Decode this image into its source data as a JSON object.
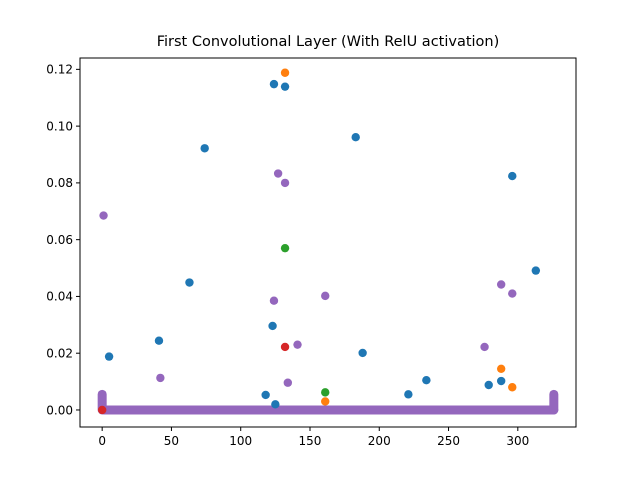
{
  "chart_data": {
    "type": "scatter",
    "title": "First Convolutional Layer (With RelU activation)",
    "xlabel": "",
    "ylabel": "",
    "xlim": [
      -16,
      342
    ],
    "ylim": [
      -0.006,
      0.124
    ],
    "x_ticks": [
      0,
      50,
      100,
      150,
      200,
      250,
      300
    ],
    "y_ticks": [
      0.0,
      0.02,
      0.04,
      0.06,
      0.08,
      0.1,
      0.12
    ],
    "y_tick_labels": [
      "0.00",
      "0.02",
      "0.04",
      "0.06",
      "0.08",
      "0.10",
      "0.12"
    ],
    "grid": false,
    "legend": "none",
    "baseline": {
      "x_range": [
        1,
        326
      ],
      "y": 0.0,
      "color": "#9467bd",
      "end_caps": [
        {
          "x": 0,
          "y": 0.0055,
          "color": "#9467bd"
        },
        {
          "x": 326,
          "y": 0.0055,
          "color": "#9467bd"
        }
      ]
    },
    "series": [
      {
        "color": "#1f77b4",
        "points": [
          {
            "x": 5,
            "y": 0.0188
          },
          {
            "x": 41,
            "y": 0.0244
          },
          {
            "x": 63,
            "y": 0.0449
          },
          {
            "x": 74,
            "y": 0.0922
          },
          {
            "x": 118,
            "y": 0.0053
          },
          {
            "x": 123,
            "y": 0.0296
          },
          {
            "x": 124,
            "y": 0.1148
          },
          {
            "x": 125,
            "y": 0.002
          },
          {
            "x": 132,
            "y": 0.1139
          },
          {
            "x": 183,
            "y": 0.0961
          },
          {
            "x": 188,
            "y": 0.0201
          },
          {
            "x": 221,
            "y": 0.0055
          },
          {
            "x": 234,
            "y": 0.0105
          },
          {
            "x": 279,
            "y": 0.0088
          },
          {
            "x": 288,
            "y": 0.0102
          },
          {
            "x": 296,
            "y": 0.0824
          },
          {
            "x": 313,
            "y": 0.0491
          }
        ]
      },
      {
        "color": "#ff7f0e",
        "points": [
          {
            "x": 132,
            "y": 0.1188
          },
          {
            "x": 161,
            "y": 0.003
          },
          {
            "x": 288,
            "y": 0.0145
          },
          {
            "x": 296,
            "y": 0.008
          }
        ]
      },
      {
        "color": "#2ca02c",
        "points": [
          {
            "x": 132,
            "y": 0.057
          },
          {
            "x": 161,
            "y": 0.0062
          }
        ]
      },
      {
        "color": "#d62728",
        "points": [
          {
            "x": 0,
            "y": 0.0
          },
          {
            "x": 132,
            "y": 0.0222
          }
        ]
      },
      {
        "color": "#9467bd",
        "points": [
          {
            "x": 1,
            "y": 0.0685
          },
          {
            "x": 42,
            "y": 0.0113
          },
          {
            "x": 124,
            "y": 0.0385
          },
          {
            "x": 127,
            "y": 0.0833
          },
          {
            "x": 132,
            "y": 0.08
          },
          {
            "x": 134,
            "y": 0.0096
          },
          {
            "x": 141,
            "y": 0.023
          },
          {
            "x": 161,
            "y": 0.0402
          },
          {
            "x": 276,
            "y": 0.0222
          },
          {
            "x": 288,
            "y": 0.0442
          },
          {
            "x": 296,
            "y": 0.041
          }
        ]
      }
    ]
  }
}
